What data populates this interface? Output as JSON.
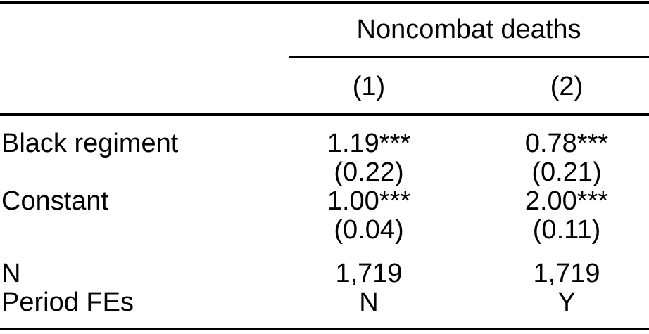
{
  "page": {
    "background_color": "#ffffff",
    "text_color": "#000000",
    "rule_color": "#000000"
  },
  "table": {
    "spanner_header": "Noncombat deaths",
    "column_headers": [
      "(1)",
      "(2)"
    ],
    "rows": [
      {
        "label": "Black regiment",
        "col1": "1.19***",
        "col2": "0.78***"
      },
      {
        "label": "",
        "col1": "(0.22)",
        "col2": "(0.21)"
      },
      {
        "label": "Constant",
        "col1": "1.00***",
        "col2": "2.00***"
      },
      {
        "label": "",
        "col1": "(0.04)",
        "col2": "(0.11)"
      },
      {
        "label": "N",
        "col1": "1,719",
        "col2": "1,719"
      },
      {
        "label": "Period FEs",
        "col1": "N",
        "col2": "Y"
      }
    ]
  }
}
